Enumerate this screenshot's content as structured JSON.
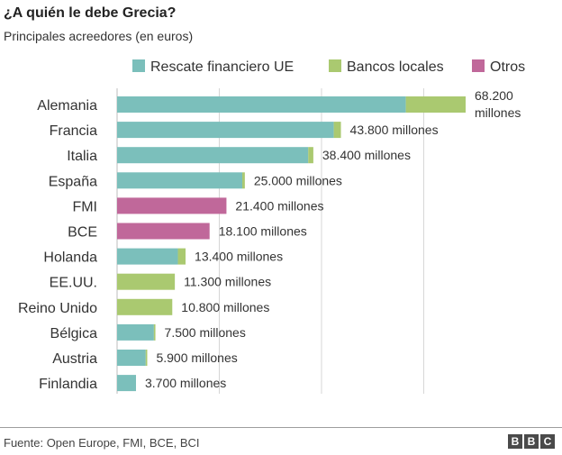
{
  "chart_data": {
    "type": "bar",
    "orientation": "horizontal",
    "stacked": true,
    "title": "¿A quién le debe Grecia?",
    "subtitle": "Principales acreedores (en euros)",
    "unit": "millones de euros",
    "xlim": [
      0,
      70000
    ],
    "grid": true,
    "legend_position": "top",
    "categories": [
      "Alemania",
      "Francia",
      "Italia",
      "España",
      "FMI",
      "BCE",
      "Holanda",
      "EE.UU.",
      "Reino Unido",
      "Bélgica",
      "Austria",
      "Finlandia"
    ],
    "series": [
      {
        "name": "Rescate financiero UE",
        "color": "#7bbfbb",
        "values": [
          56500,
          42400,
          37400,
          24500,
          0,
          0,
          11900,
          0,
          0,
          7200,
          5600,
          3700
        ]
      },
      {
        "name": "Bancos locales",
        "color": "#aac970",
        "values": [
          11700,
          1400,
          1000,
          500,
          0,
          0,
          1500,
          11300,
          10800,
          300,
          300,
          0
        ]
      },
      {
        "name": "Otros",
        "color": "#c0689a",
        "values": [
          0,
          0,
          0,
          0,
          21400,
          18100,
          0,
          0,
          0,
          0,
          0,
          0
        ]
      }
    ],
    "data_labels": [
      "68.200 millones",
      "43.800 millones",
      "38.400 millones",
      "25.000 millones",
      "21.400 millones",
      "18.100 millones",
      "13.400 millones",
      "11.300 millones",
      "10.800 millones",
      "7.500 millones",
      "5.900 millones",
      "3.700 millones"
    ]
  },
  "footer": {
    "source": "Fuente: Open Europe, FMI, BCE, BCI",
    "logo_letters": [
      "B",
      "B",
      "C"
    ]
  }
}
